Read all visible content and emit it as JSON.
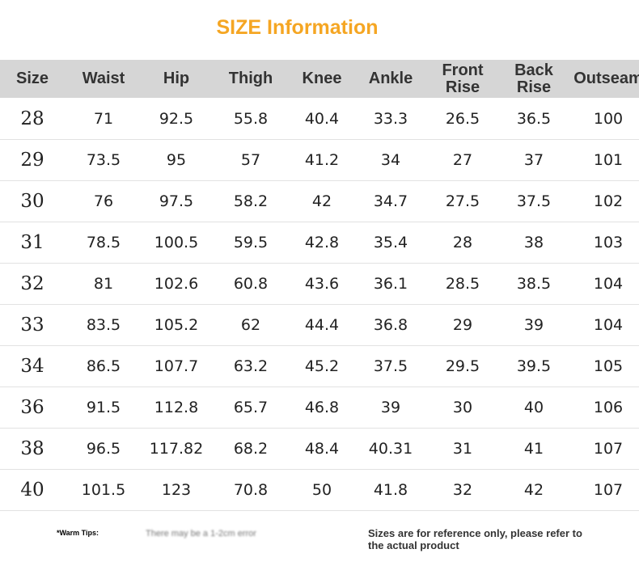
{
  "header": {
    "title": "SIZE Information"
  },
  "table": {
    "columns": [
      "Size",
      "Waist",
      "Hip",
      "Thigh",
      "Knee",
      "Ankle",
      "Front Rise",
      "Back Rise",
      "Outseam"
    ],
    "rows": [
      [
        "28",
        "71",
        "92.5",
        "55.8",
        "40.4",
        "33.3",
        "26.5",
        "36.5",
        "100"
      ],
      [
        "29",
        "73.5",
        "95",
        "57",
        "41.2",
        "34",
        "27",
        "37",
        "101"
      ],
      [
        "30",
        "76",
        "97.5",
        "58.2",
        "42",
        "34.7",
        "27.5",
        "37.5",
        "102"
      ],
      [
        "31",
        "78.5",
        "100.5",
        "59.5",
        "42.8",
        "35.4",
        "28",
        "38",
        "103"
      ],
      [
        "32",
        "81",
        "102.6",
        "60.8",
        "43.6",
        "36.1",
        "28.5",
        "38.5",
        "104"
      ],
      [
        "33",
        "83.5",
        "105.2",
        "62",
        "44.4",
        "36.8",
        "29",
        "39",
        "104"
      ],
      [
        "34",
        "86.5",
        "107.7",
        "63.2",
        "45.2",
        "37.5",
        "29.5",
        "39.5",
        "105"
      ],
      [
        "36",
        "91.5",
        "112.8",
        "65.7",
        "46.8",
        "39",
        "30",
        "40",
        "106"
      ],
      [
        "38",
        "96.5",
        "117.82",
        "68.2",
        "48.4",
        "40.31",
        "31",
        "41",
        "107"
      ],
      [
        "40",
        "101.5",
        "123",
        "70.8",
        "50",
        "41.8",
        "32",
        "42",
        "107"
      ]
    ]
  },
  "footer": {
    "tip_label": "*Warm Tips:",
    "note": "There may be a 1-2cm error",
    "reference": "Sizes are for reference only, please refer to the actual product"
  }
}
